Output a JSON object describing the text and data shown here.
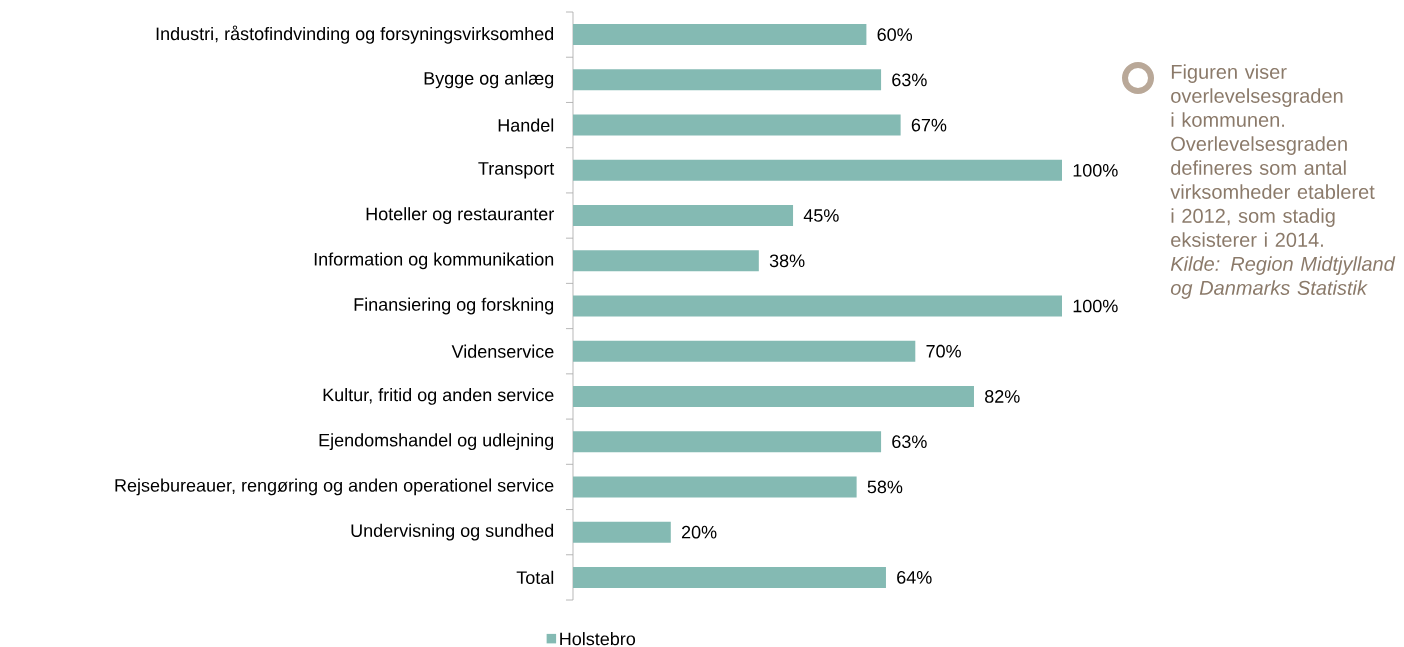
{
  "chart_data": {
    "type": "bar",
    "orientation": "horizontal",
    "categories": [
      "Industri, råstofindvinding og forsyningsvirksomhed",
      "Bygge og anlæg",
      "Handel",
      "Transport",
      "Hoteller og restauranter",
      "Information og kommunikation",
      "Finansiering og forskning",
      "Videnservice",
      "Kultur, fritid og anden service",
      "Ejendomshandel og udlejning",
      "Rejsebureauer, rengøring og anden operationel service",
      "Undervisning og sundhed",
      "Total"
    ],
    "series": [
      {
        "name": "Holstebro",
        "color": "#84bab3",
        "values": [
          60,
          63,
          67,
          100,
          45,
          38,
          100,
          70,
          82,
          63,
          58,
          20,
          64
        ],
        "value_labels": [
          "60%",
          "63%",
          "67%",
          "100%",
          "45%",
          "38%",
          "100%",
          "70%",
          "82%",
          "63%",
          "58%",
          "20%",
          "64%"
        ]
      }
    ],
    "legend": "bottom",
    "annotations": [
      "Figuren viser overlevelsesgraden i kommunen. Overlevelsesgraden defineres som antal virksomheder etableret i 2012, som stadig eksisterer i 2014.",
      "*Kilde: Region Midtjylland og Danmarks Statistik*"
    ]
  }
}
